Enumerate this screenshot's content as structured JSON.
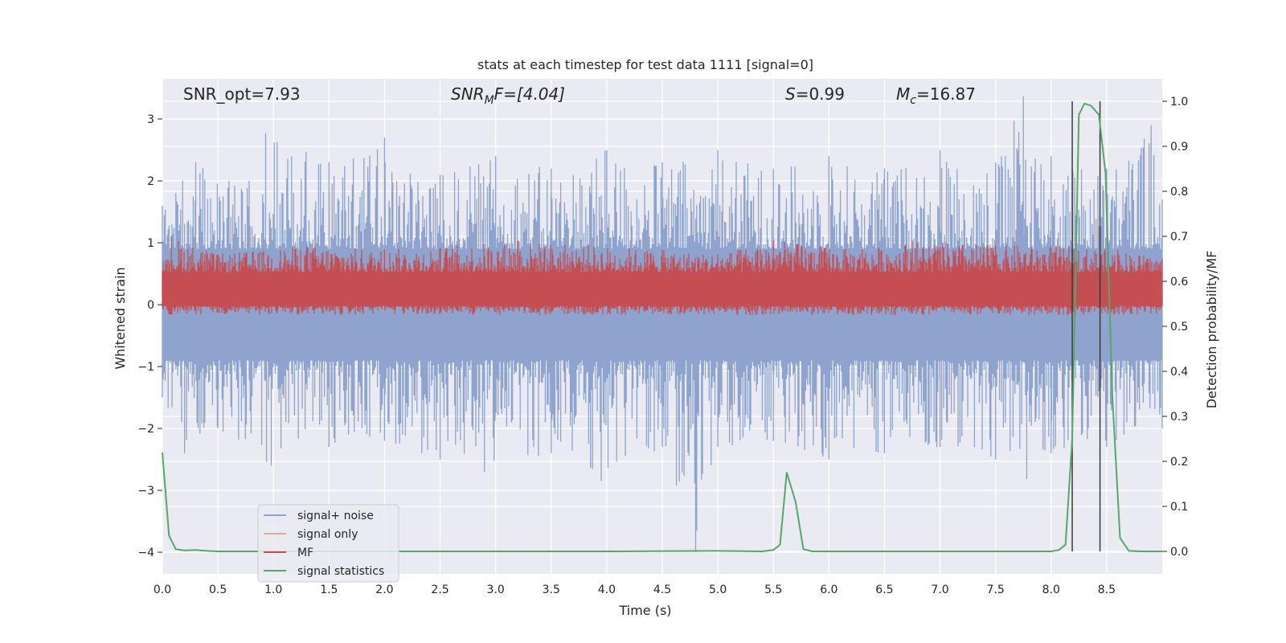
{
  "chart_data": {
    "type": "line",
    "title": "stats at each timestep for test data 1111 [signal=0]",
    "xlabel": "Time (s)",
    "ylabel_left": "Whitened strain",
    "ylabel_right": "Detection probability/MF",
    "xlim": [
      0.0,
      9.0
    ],
    "ylim_left": [
      -4.35,
      3.65
    ],
    "ylim_right": [
      -0.05,
      1.05
    ],
    "x_ticks": [
      "0.0",
      "0.5",
      "1.0",
      "1.5",
      "2.0",
      "2.5",
      "3.0",
      "3.5",
      "4.0",
      "4.5",
      "5.0",
      "5.5",
      "6.0",
      "6.5",
      "7.0",
      "7.5",
      "8.0",
      "8.5"
    ],
    "y_left_ticks": [
      "3",
      "2",
      "1",
      "0",
      "−1",
      "−2",
      "−3",
      "−4"
    ],
    "y_right_ticks": [
      "1.0",
      "0.9",
      "0.8",
      "0.7",
      "0.6",
      "0.5",
      "0.4",
      "0.3",
      "0.2",
      "0.1",
      "0.0"
    ],
    "grid": true,
    "legend_position": "lower-left",
    "annotations": {
      "snr_opt": "SNR_opt=7.93",
      "snr_mf": "SNRMF=[4.04]",
      "snr_mf_base": "SNR",
      "snr_mf_sub": "M",
      "snr_mf_rest": "F=[4.04]",
      "s_value": "S=0.99",
      "s_label": "S",
      "s_rest": "=0.99",
      "mc_value": "Mc=16.87",
      "mc_base": "M",
      "mc_sub": "c",
      "mc_rest": "=16.87"
    },
    "vertical_lines_x": [
      8.19,
      8.44
    ],
    "colors": {
      "signal_noise": "#8ea3cd",
      "signal_only": "#e8a78f",
      "mf": "#c44e52",
      "signal_statistics": "#55a868",
      "vline": "#3a3a3a",
      "background": "#eaeaf2",
      "grid": "#ffffff"
    },
    "series": [
      {
        "name": "signal+ noise",
        "axis": "left",
        "style": "dense noise band",
        "envelope_upper": [
          [
            0.0,
            1.6
          ],
          [
            0.3,
            2.3
          ],
          [
            0.6,
            2.0
          ],
          [
            0.93,
            2.77
          ],
          [
            1.5,
            2.3
          ],
          [
            2.0,
            2.7
          ],
          [
            2.5,
            2.1
          ],
          [
            3.0,
            2.4
          ],
          [
            3.5,
            2.2
          ],
          [
            4.0,
            2.5
          ],
          [
            4.5,
            2.3
          ],
          [
            5.0,
            2.5
          ],
          [
            5.5,
            2.2
          ],
          [
            6.0,
            2.4
          ],
          [
            6.5,
            2.2
          ],
          [
            7.0,
            2.5
          ],
          [
            7.5,
            2.3
          ],
          [
            7.75,
            3.37
          ],
          [
            8.0,
            2.4
          ],
          [
            8.5,
            2.2
          ],
          [
            8.9,
            2.9
          ],
          [
            9.0,
            1.7
          ]
        ],
        "envelope_lower": [
          [
            0.0,
            -1.5
          ],
          [
            0.2,
            -2.4
          ],
          [
            0.5,
            -2.0
          ],
          [
            0.98,
            -2.6
          ],
          [
            1.5,
            -2.3
          ],
          [
            2.0,
            -2.2
          ],
          [
            2.5,
            -2.5
          ],
          [
            2.9,
            -2.7
          ],
          [
            3.5,
            -2.4
          ],
          [
            3.95,
            -2.85
          ],
          [
            4.5,
            -2.3
          ],
          [
            4.8,
            -4.0
          ],
          [
            5.0,
            -2.3
          ],
          [
            5.5,
            -2.2
          ],
          [
            6.0,
            -2.5
          ],
          [
            6.5,
            -2.4
          ],
          [
            7.0,
            -2.3
          ],
          [
            7.5,
            -2.5
          ],
          [
            7.78,
            -2.82
          ],
          [
            8.0,
            -2.4
          ],
          [
            8.5,
            -2.3
          ],
          [
            9.0,
            -2.0
          ]
        ]
      },
      {
        "name": "signal only",
        "axis": "left",
        "values": []
      },
      {
        "name": "MF",
        "axis": "right",
        "style": "band",
        "band_min": 0.55,
        "band_max": 0.62,
        "peaks": [
          [
            0.08,
            0.7
          ],
          [
            0.5,
            0.66
          ],
          [
            1.3,
            0.68
          ],
          [
            2.0,
            0.67
          ],
          [
            3.2,
            0.69
          ],
          [
            4.5,
            0.67
          ],
          [
            5.0,
            0.66
          ],
          [
            5.5,
            0.69
          ],
          [
            6.3,
            0.67
          ],
          [
            6.75,
            0.69
          ],
          [
            7.5,
            0.68
          ],
          [
            8.0,
            0.68
          ],
          [
            8.6,
            0.67
          ],
          [
            9.0,
            0.65
          ]
        ]
      },
      {
        "name": "signal statistics",
        "axis": "right",
        "points": [
          [
            0.0,
            0.22
          ],
          [
            0.06,
            0.035
          ],
          [
            0.12,
            0.005
          ],
          [
            0.2,
            0.002
          ],
          [
            0.3,
            0.003
          ],
          [
            0.4,
            0.001
          ],
          [
            0.5,
            0.0
          ],
          [
            1.0,
            0.0
          ],
          [
            2.0,
            0.0
          ],
          [
            3.0,
            0.0
          ],
          [
            4.0,
            0.0
          ],
          [
            5.0,
            0.001
          ],
          [
            5.4,
            0.0
          ],
          [
            5.5,
            0.003
          ],
          [
            5.56,
            0.015
          ],
          [
            5.62,
            0.175
          ],
          [
            5.7,
            0.11
          ],
          [
            5.77,
            0.005
          ],
          [
            5.85,
            0.0
          ],
          [
            6.0,
            0.0
          ],
          [
            7.0,
            0.0
          ],
          [
            8.0,
            0.0
          ],
          [
            8.07,
            0.003
          ],
          [
            8.13,
            0.015
          ],
          [
            8.19,
            0.25
          ],
          [
            8.25,
            0.97
          ],
          [
            8.3,
            0.995
          ],
          [
            8.36,
            0.99
          ],
          [
            8.43,
            0.97
          ],
          [
            8.49,
            0.84
          ],
          [
            8.55,
            0.35
          ],
          [
            8.62,
            0.03
          ],
          [
            8.7,
            0.001
          ],
          [
            8.8,
            0.0
          ],
          [
            9.0,
            0.0
          ]
        ]
      }
    ]
  }
}
